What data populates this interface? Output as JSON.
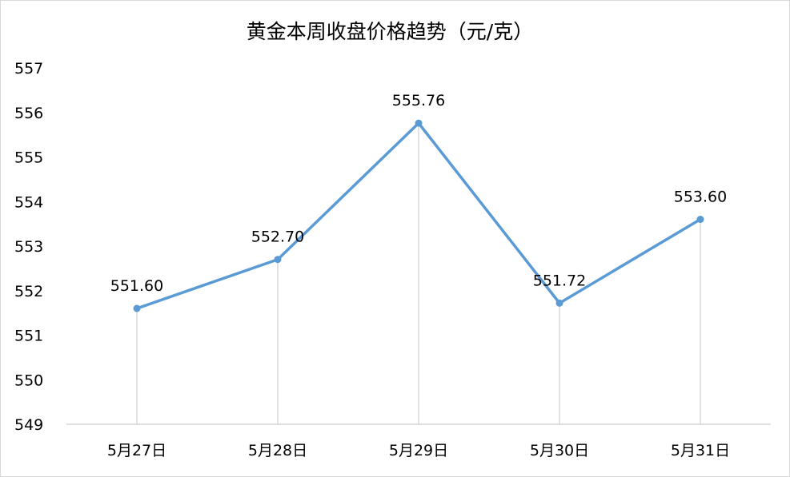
{
  "chart_data": {
    "type": "line",
    "title": "黄金本周收盘价格趋势（元/克）",
    "xlabel": "",
    "ylabel": "",
    "categories": [
      "5月27日",
      "5月28日",
      "5月29日",
      "5月30日",
      "5月31日"
    ],
    "values": [
      551.6,
      552.7,
      555.76,
      551.72,
      553.6
    ],
    "data_labels": [
      "551.60",
      "552.70",
      "555.76",
      "551.72",
      "553.60"
    ],
    "ylim": [
      549,
      557
    ],
    "yticks": [
      "549",
      "550",
      "551",
      "552",
      "553",
      "554",
      "555",
      "556",
      "557"
    ],
    "grid": false,
    "drop_lines": true,
    "legend": "none",
    "colors": {
      "line": "#5b9bd5",
      "drop_line": "#d9d9d9",
      "axis": "#bfbfbf",
      "border": "#d9d9d9"
    }
  }
}
